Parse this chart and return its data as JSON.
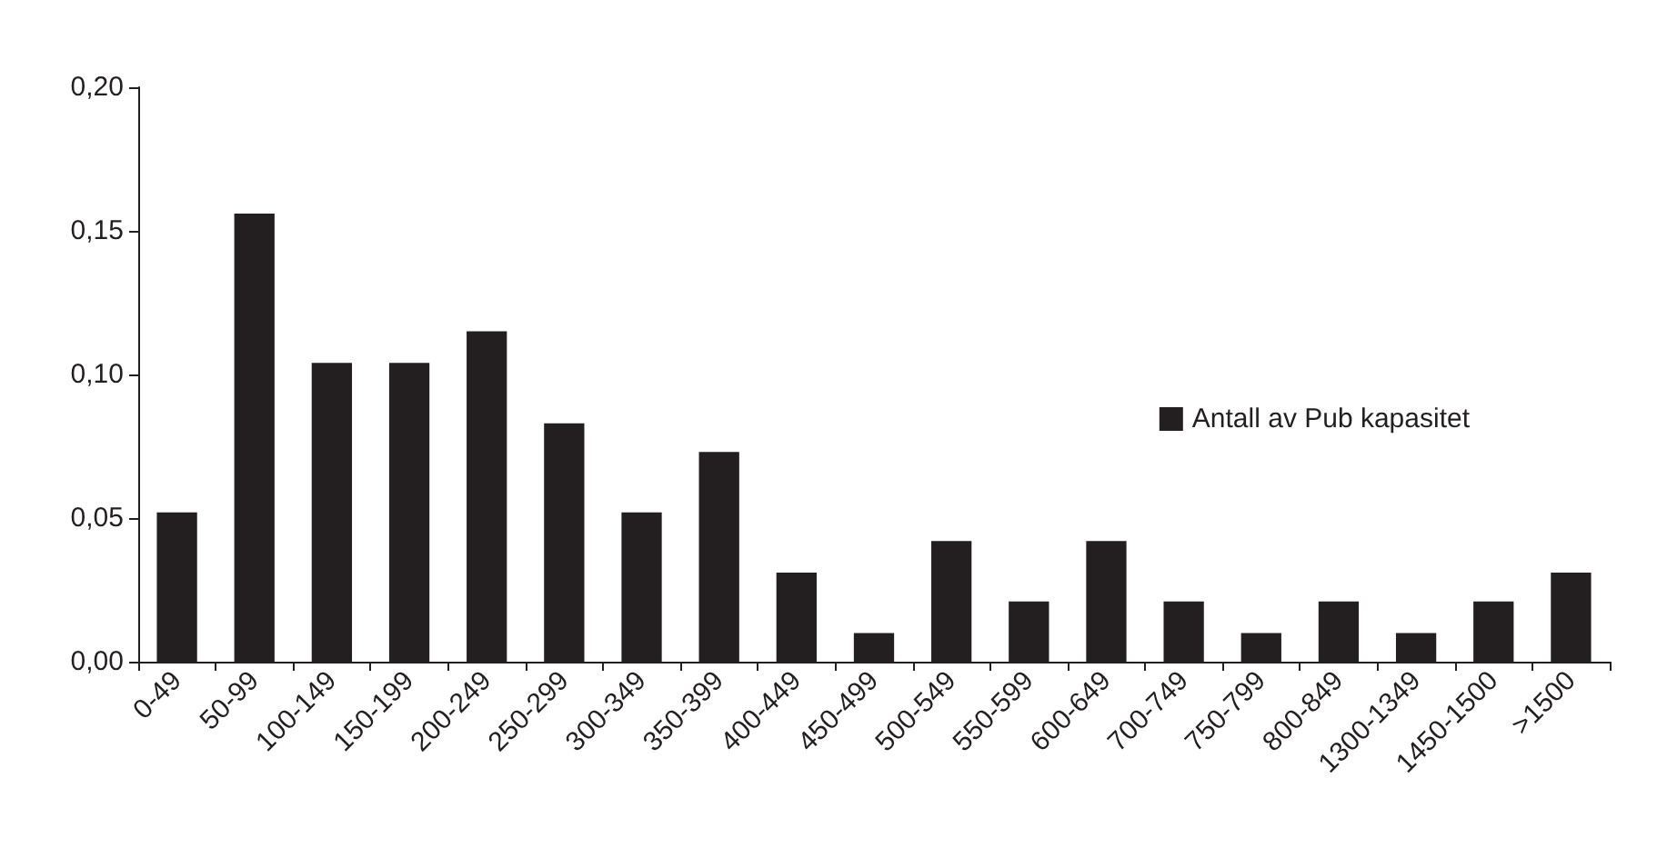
{
  "chart_data": {
    "type": "bar",
    "categories": [
      "0-49",
      "50-99",
      "100-149",
      "150-199",
      "200-249",
      "250-299",
      "300-349",
      "350-399",
      "400-449",
      "450-499",
      "500-549",
      "550-599",
      "600-649",
      "700-749",
      "750-799",
      "800-849",
      "1300-1349",
      "1450-1500",
      ">1500"
    ],
    "series": [
      {
        "name": "Antall av Pub kapasitet",
        "color": "#231f20",
        "values": [
          0.052,
          0.156,
          0.104,
          0.104,
          0.115,
          0.083,
          0.052,
          0.073,
          0.031,
          0.01,
          0.042,
          0.021,
          0.042,
          0.021,
          0.01,
          0.021,
          0.01,
          0.021,
          0.031
        ]
      }
    ],
    "ylim": [
      0,
      0.2
    ],
    "yticks": [
      {
        "value": 0,
        "label": "0,00"
      },
      {
        "value": 0.05,
        "label": "0,05"
      },
      {
        "value": 0.1,
        "label": "0,10"
      },
      {
        "value": 0.15,
        "label": "0,15"
      },
      {
        "value": 0.2,
        "label": "0,20"
      }
    ],
    "grid": false,
    "legend": "right"
  }
}
